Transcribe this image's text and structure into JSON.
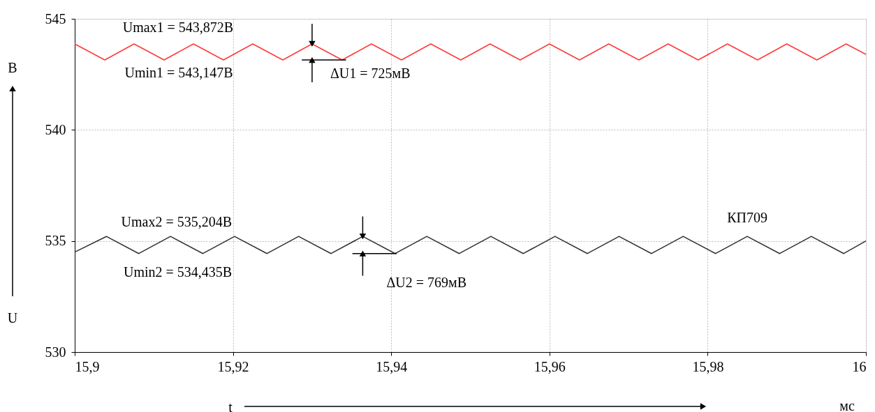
{
  "chart_data": {
    "type": "line",
    "xlabel": "t",
    "ylabel": "U",
    "xlim": [
      15.9,
      16
    ],
    "ylim": [
      530,
      545
    ],
    "xticks": [
      {
        "value": 15.9,
        "label": "15,9"
      },
      {
        "value": 15.92,
        "label": "15,92"
      },
      {
        "value": 15.94,
        "label": "15,94"
      },
      {
        "value": 15.96,
        "label": "15,96"
      },
      {
        "value": 15.98,
        "label": "15,98"
      },
      16
    ],
    "yticks": [
      530,
      535,
      540,
      545
    ],
    "grid": true,
    "legend": false,
    "marker": "none",
    "line_style": "solid",
    "series": [
      {
        "color": "#ff3b3b",
        "x": [
          15.9,
          15.9038,
          15.9075,
          15.9113,
          15.915,
          15.9188,
          15.9225,
          15.9263,
          15.93,
          15.9338,
          15.9375,
          15.9413,
          15.945,
          15.9488,
          15.9525,
          15.9563,
          15.96,
          15.9638,
          15.9675,
          15.9713,
          15.975,
          15.9788,
          15.9825,
          15.9863,
          15.99,
          15.9938,
          15.9975,
          16
        ],
        "values": [
          543.872,
          543.147,
          543.872,
          543.147,
          543.872,
          543.147,
          543.872,
          543.147,
          543.872,
          543.147,
          543.872,
          543.147,
          543.872,
          543.147,
          543.872,
          543.147,
          543.872,
          543.147,
          543.872,
          543.147,
          543.872,
          543.147,
          543.872,
          543.147,
          543.872,
          543.147,
          543.872,
          543.4
        ]
      },
      {
        "name": "КП709",
        "color": "#333333",
        "x": [
          15.9,
          15.904,
          15.9081,
          15.9121,
          15.9162,
          15.9202,
          15.9243,
          15.9283,
          15.9324,
          15.9364,
          15.9405,
          15.9445,
          15.9486,
          15.9526,
          15.9567,
          15.9607,
          15.9648,
          15.9688,
          15.9729,
          15.9769,
          15.981,
          15.985,
          15.9891,
          15.9931,
          15.9972,
          16
        ],
        "values": [
          534.5,
          535.204,
          534.435,
          535.204,
          534.435,
          535.204,
          534.435,
          535.204,
          534.435,
          535.204,
          534.435,
          535.204,
          534.435,
          535.204,
          534.435,
          535.204,
          534.435,
          535.204,
          534.435,
          535.204,
          534.435,
          535.204,
          534.435,
          535.204,
          534.435,
          535.0
        ]
      }
    ],
    "annotations": [
      {
        "text": "Umax1 = 543,872В",
        "x": 15.915,
        "y": 543.872
      },
      {
        "text": "Umin1 = 543,147В",
        "x": 15.9113,
        "y": 543.147
      },
      {
        "text": "ΔU1 = 725мВ",
        "x": 15.93,
        "y": 543.147
      },
      {
        "text": "Umax2 = 535,204В",
        "x": 15.9202,
        "y": 535.204
      },
      {
        "text": "Umin2 = 534,435В",
        "x": 15.9162,
        "y": 534.435
      },
      {
        "text": "ΔU2 = 769мВ",
        "x": 15.9364,
        "y": 534.435
      },
      "В",
      "мс"
    ]
  }
}
